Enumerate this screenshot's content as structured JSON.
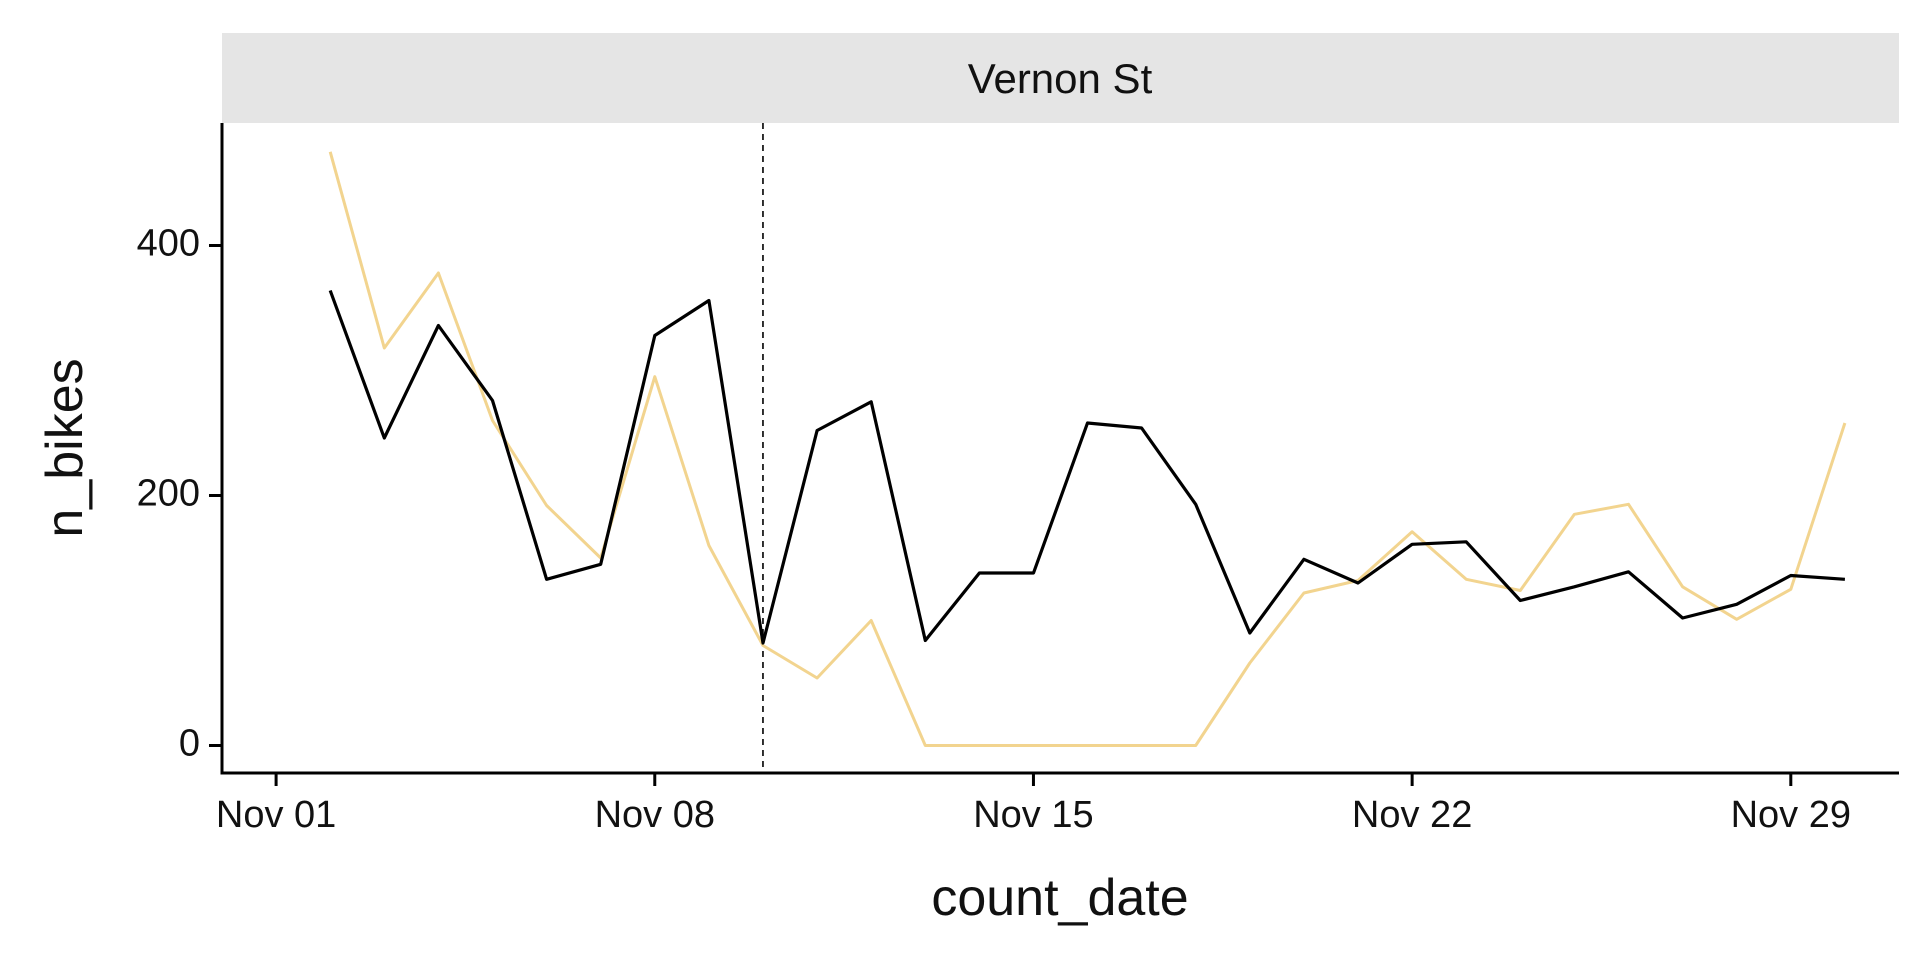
{
  "chart_data": {
    "type": "line",
    "facet_title": "Vernon St",
    "xlabel": "count_date",
    "ylabel": "n_bikes",
    "x_ticks": [
      "Nov 01",
      "Nov 08",
      "Nov 15",
      "Nov 22",
      "Nov 29"
    ],
    "y_ticks": [
      "0",
      "200",
      "400"
    ],
    "ylim": [
      -22,
      498
    ],
    "xlim": [
      "2023-10-31",
      "2023-12-01"
    ],
    "grid": false,
    "legend": "none",
    "vline_date": "2023-11-10",
    "series": [
      {
        "color": "#f2d48f",
        "points": [
          [
            "2023-11-02",
            475
          ],
          [
            "2023-11-03",
            318
          ],
          [
            "2023-11-04",
            378
          ],
          [
            "2023-11-05",
            260
          ],
          [
            "2023-11-06",
            192
          ],
          [
            "2023-11-07",
            150
          ],
          [
            "2023-11-08",
            295
          ],
          [
            "2023-11-09",
            160
          ],
          [
            "2023-11-10",
            80
          ],
          [
            "2023-11-11",
            54
          ],
          [
            "2023-11-12",
            100
          ],
          [
            "2023-11-13",
            0
          ],
          [
            "2023-11-14",
            0
          ],
          [
            "2023-11-15",
            0
          ],
          [
            "2023-11-16",
            0
          ],
          [
            "2023-11-17",
            0
          ],
          [
            "2023-11-18",
            0
          ],
          [
            "2023-11-19",
            66
          ],
          [
            "2023-11-20",
            122
          ],
          [
            "2023-11-21",
            132
          ],
          [
            "2023-11-22",
            171
          ],
          [
            "2023-11-23",
            133
          ],
          [
            "2023-11-24",
            124
          ],
          [
            "2023-11-25",
            185
          ],
          [
            "2023-11-26",
            193
          ],
          [
            "2023-11-27",
            127
          ],
          [
            "2023-11-28",
            101
          ],
          [
            "2023-11-29",
            125
          ],
          [
            "2023-11-30",
            258
          ]
        ]
      },
      {
        "color": "#000000",
        "points": [
          [
            "2023-11-02",
            364
          ],
          [
            "2023-11-03",
            246
          ],
          [
            "2023-11-04",
            336
          ],
          [
            "2023-11-05",
            276
          ],
          [
            "2023-11-06",
            133
          ],
          [
            "2023-11-07",
            145
          ],
          [
            "2023-11-08",
            328
          ],
          [
            "2023-11-09",
            356
          ],
          [
            "2023-11-10",
            82
          ],
          [
            "2023-11-11",
            252
          ],
          [
            "2023-11-12",
            275
          ],
          [
            "2023-11-13",
            84
          ],
          [
            "2023-11-14",
            138
          ],
          [
            "2023-11-15",
            138
          ],
          [
            "2023-11-16",
            258
          ],
          [
            "2023-11-17",
            254
          ],
          [
            "2023-11-18",
            193
          ],
          [
            "2023-11-19",
            90
          ],
          [
            "2023-11-20",
            149
          ],
          [
            "2023-11-21",
            130
          ],
          [
            "2023-11-22",
            161
          ],
          [
            "2023-11-23",
            163
          ],
          [
            "2023-11-24",
            116
          ],
          [
            "2023-11-25",
            127
          ],
          [
            "2023-11-26",
            139
          ],
          [
            "2023-11-27",
            102
          ],
          [
            "2023-11-28",
            113
          ],
          [
            "2023-11-29",
            136
          ],
          [
            "2023-11-30",
            133
          ]
        ]
      }
    ]
  }
}
